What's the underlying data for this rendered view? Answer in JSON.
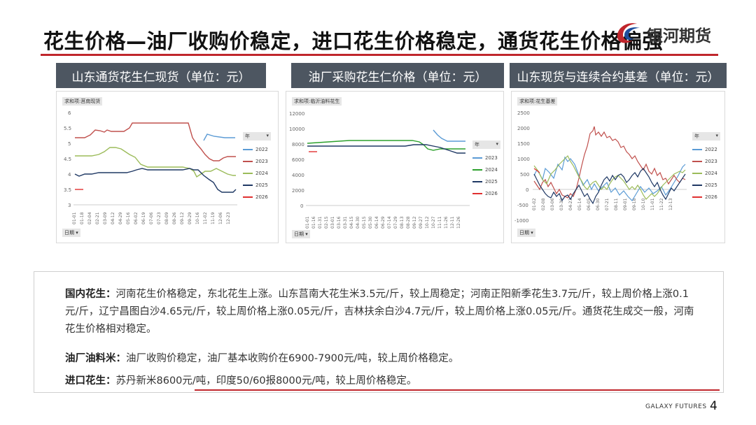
{
  "header": {
    "title": "花生价格—油厂收购价稳定，进口花生价格稳定，通货花生价格偏强",
    "logo_text": "银河期货"
  },
  "panels": [
    {
      "title": "山东通货花生仁现货（单位：元）",
      "field_label": "求和项:莒南现货",
      "axis_label": "日期",
      "legend_header": "年",
      "y_ticks": [
        "6",
        "5.5",
        "5",
        "4.5",
        "4",
        "3.5",
        "3"
      ],
      "x_ticks": [
        "01-01",
        "01-18",
        "02-04",
        "02-21",
        "03-09",
        "04-12",
        "04-29",
        "05-16",
        "06-02",
        "06-19",
        "07-06",
        "07-23",
        "08-09",
        "08-26",
        "09-12",
        "09-29",
        "10-16",
        "11-02",
        "11-19",
        "12-06",
        "12-23"
      ],
      "legend": [
        "2022",
        "2023",
        "2024",
        "2025",
        "2026"
      ]
    },
    {
      "title": "油厂采购花生仁价格（单位：元）",
      "field_label": "求和项:临沂油料花生",
      "axis_label": "日期",
      "legend_header": "年",
      "y_ticks": [
        "12000",
        "10000",
        "8000",
        "6000",
        "4000",
        "2000",
        "0"
      ],
      "x_ticks": [
        "01-01",
        "01-16",
        "01-31",
        "02-15",
        "03-01",
        "03-16",
        "03-31",
        "04-15",
        "04-30",
        "05-15",
        "05-30",
        "06-14",
        "06-29",
        "07-14",
        "07-29",
        "08-13",
        "08-28",
        "09-12",
        "09-27",
        "10-12",
        "10-27",
        "11-11",
        "11-26",
        "12-11",
        "12-26"
      ],
      "legend": [
        "2023",
        "2024",
        "2025",
        "2026"
      ]
    },
    {
      "title": "山东现货与连续合约基差（单位：元）",
      "field_label": "求和项:花生基差",
      "axis_label": "日期",
      "legend_header": "年",
      "y_ticks": [
        "2500",
        "2000",
        "1500",
        "1000",
        "500",
        "0",
        "-500",
        "-1000"
      ],
      "x_ticks": [
        "01-02",
        "02-08",
        "03-06",
        "03-30",
        "04-23",
        "05-14",
        "06-05",
        "06-30",
        "07-21",
        "08-11",
        "09-01",
        "09-18",
        "10-10",
        "11-01",
        "11-22",
        "12-13"
      ],
      "legend": [
        "2022",
        "2023",
        "2024",
        "2025",
        "2026"
      ]
    }
  ],
  "commentary": [
    {
      "label": "国内花生：",
      "text": "河南花生价格稳定，东北花生上涨。山东莒南大花生米3.5元/斤，较上周稳定；河南正阳新季花生3.7元/斤，较上周价格上涨0.1元/斤，辽宁昌图白沙4.65元/斤，较上周价格上涨0.05元/斤，吉林扶余白沙4.7元/斤，较上周价格上涨0.05元/斤。通货花生成交一般，河南花生价格相对稳定。"
    },
    {
      "label": "油厂油料米：",
      "text": "油厂收购价稳定，油厂基本收购价在6900-7900元/吨，较上周价格稳定。"
    },
    {
      "label": "进口花生：",
      "text": "苏丹新米8600元/吨，印度50/60报8000元/吨，较上周价格稳定。"
    }
  ],
  "footer": {
    "brand": "GALAXY FUTURES",
    "page": "4"
  },
  "colors": {
    "accent_red": "#c0262c",
    "panel_header_bg": "#4d5661",
    "series_2022": "#5b9bd5",
    "series_2023": "#c0504d",
    "series_2024": "#9bbb59",
    "series_2025": "#1f3864",
    "series_2026": "#e03030",
    "series_2024_oil": "#2ca02c"
  }
}
